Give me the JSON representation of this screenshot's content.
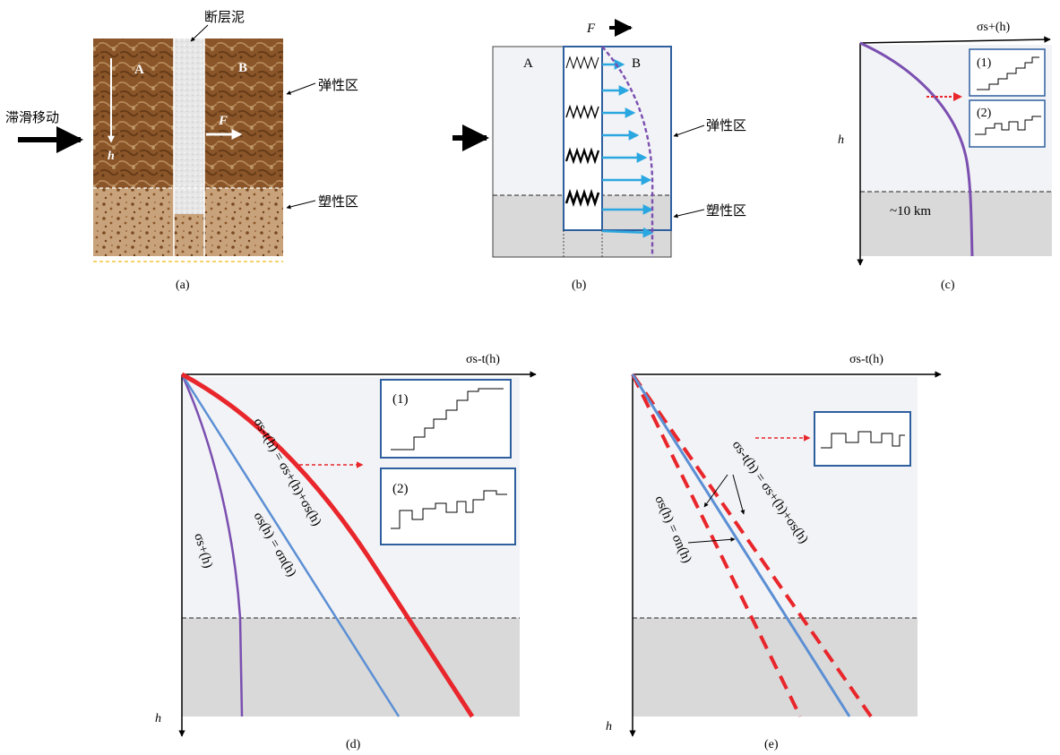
{
  "panels": {
    "a": {
      "caption": "(a)",
      "label_fault_gouge": "断层泥",
      "label_stick_slip": "滞滑移动",
      "label_A": "A",
      "label_B": "B",
      "label_h": "h",
      "label_F": "F",
      "label_elastic": "弹性区",
      "label_plastic": "塑性区"
    },
    "b": {
      "caption": "(b)",
      "label_F": "F",
      "label_A": "A",
      "label_B": "B",
      "label_elastic": "弹性区",
      "label_plastic": "塑性区"
    },
    "c": {
      "caption": "(c)",
      "axis_x": "σs+(h)",
      "axis_y": "h",
      "depth": "~10 km",
      "inset1": "(1)",
      "inset2": "(2)"
    },
    "d": {
      "caption": "(d)",
      "axis_x": "σs-t(h)",
      "axis_y": "h",
      "inset1": "(1)",
      "inset2": "(2)",
      "curve_purple": "σs+(h)",
      "curve_blue": "σs(h) = σn(h)",
      "curve_red": "σs-t(h) = σs+(h)+σs(h)"
    },
    "e": {
      "caption": "(e)",
      "axis_x": "σs-t(h)",
      "axis_y": "h",
      "curve_blue": "σs(h) = σn(h)",
      "curve_red": "σs-t(h) = σs+(h)+σs(h)"
    }
  },
  "colors": {
    "purple": "#7b4fb0",
    "blue": "#5b8fd4",
    "red": "#e8262b",
    "arrow_cyan": "#2aa7e0",
    "box_blue": "#2e5f9e",
    "elastic_bg": "#f2f3f6",
    "plastic_bg": "#d9d9d9"
  }
}
